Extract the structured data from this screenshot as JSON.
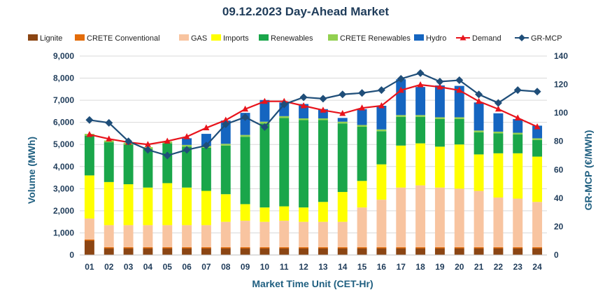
{
  "chart_data": {
    "type": "bar",
    "stacked": true,
    "title": "09.12.2023  Day-Ahead Market",
    "xlabel": "Market Time Unit (CET-Hr)",
    "ylabel": "Volume (MWh)",
    "y2label": "GR-MCP (€/MWh)",
    "ylim": [
      0,
      9000
    ],
    "y2lim": [
      0,
      140
    ],
    "yticks": [
      0,
      1000,
      2000,
      3000,
      4000,
      5000,
      6000,
      7000,
      8000,
      9000
    ],
    "yticklabels": [
      "0",
      "1,000",
      "2,000",
      "3,000",
      "4,000",
      "5,000",
      "6,000",
      "7,000",
      "8,000",
      "9,000"
    ],
    "y2ticks": [
      0,
      20,
      40,
      60,
      80,
      100,
      120,
      140
    ],
    "y2ticklabels": [
      "0",
      "20",
      "40",
      "60",
      "80",
      "100",
      "120",
      "140"
    ],
    "grid": true,
    "legend_position": "top",
    "categories": [
      "01",
      "02",
      "03",
      "04",
      "05",
      "06",
      "07",
      "08",
      "09",
      "10",
      "11",
      "12",
      "13",
      "14",
      "15",
      "16",
      "17",
      "18",
      "19",
      "20",
      "21",
      "22",
      "23",
      "24"
    ],
    "series": [
      {
        "name": "Lignite",
        "kind": "bar",
        "color": "#8b4513",
        "values": [
          650,
          300,
          300,
          300,
          300,
          300,
          300,
          300,
          300,
          300,
          300,
          300,
          300,
          300,
          300,
          300,
          300,
          300,
          300,
          300,
          300,
          300,
          300,
          300
        ]
      },
      {
        "name": "CRETE Conventional",
        "kind": "bar",
        "color": "#e36c0a",
        "values": [
          50,
          50,
          50,
          50,
          50,
          50,
          50,
          50,
          50,
          50,
          50,
          50,
          50,
          50,
          50,
          50,
          50,
          50,
          50,
          50,
          50,
          50,
          50,
          50
        ]
      },
      {
        "name": "GAS",
        "kind": "bar",
        "color": "#f8c4a0",
        "values": [
          950,
          1000,
          1000,
          1000,
          1000,
          1000,
          1000,
          1150,
          1200,
          1150,
          1200,
          1150,
          1150,
          1150,
          1800,
          2150,
          2700,
          2800,
          2700,
          2650,
          2550,
          2250,
          2200,
          2050
        ]
      },
      {
        "name": "Imports",
        "kind": "bar",
        "color": "#ffff00",
        "values": [
          1950,
          1950,
          1850,
          1700,
          1900,
          1700,
          1550,
          1250,
          750,
          650,
          650,
          650,
          900,
          1350,
          1200,
          1600,
          1900,
          1900,
          1850,
          2000,
          1650,
          2000,
          2050,
          2050
        ]
      },
      {
        "name": "Renewables",
        "kind": "bar",
        "color": "#1aa64a",
        "values": [
          1800,
          1800,
          1800,
          1750,
          1800,
          1850,
          1950,
          2200,
          3050,
          3800,
          4000,
          3950,
          3700,
          3100,
          2450,
          1500,
          1300,
          1200,
          1250,
          1150,
          1000,
          900,
          850,
          750
        ]
      },
      {
        "name": "CRETE Renewables",
        "kind": "bar",
        "color": "#92d050",
        "values": [
          80,
          80,
          80,
          80,
          80,
          80,
          80,
          80,
          80,
          80,
          80,
          80,
          80,
          80,
          80,
          80,
          80,
          80,
          80,
          80,
          80,
          80,
          80,
          80
        ]
      },
      {
        "name": "Hydro",
        "kind": "bar",
        "color": "#1565c0",
        "values": [
          0,
          0,
          0,
          0,
          0,
          300,
          550,
          1050,
          1000,
          980,
          620,
          650,
          420,
          170,
          720,
          1070,
          1620,
          1270,
          1440,
          1420,
          1270,
          830,
          620,
          570
        ]
      },
      {
        "name": "Demand",
        "kind": "line",
        "axis": "left",
        "color": "#e8141c",
        "marker": "triangle",
        "values": [
          5450,
          5250,
          5100,
          5000,
          5150,
          5350,
          5750,
          6100,
          6600,
          6950,
          6950,
          6750,
          6550,
          6400,
          6650,
          6750,
          7450,
          7700,
          7600,
          7450,
          6950,
          6600,
          6200,
          5800
        ]
      },
      {
        "name": "GR-MCP",
        "kind": "line",
        "axis": "right",
        "color": "#1f4e79",
        "marker": "diamond",
        "values": [
          95,
          93,
          80,
          74,
          70,
          74,
          77,
          92,
          97,
          90,
          106,
          111,
          110,
          113,
          114,
          116,
          124,
          128,
          122,
          123,
          113,
          107,
          116,
          115
        ]
      }
    ]
  }
}
